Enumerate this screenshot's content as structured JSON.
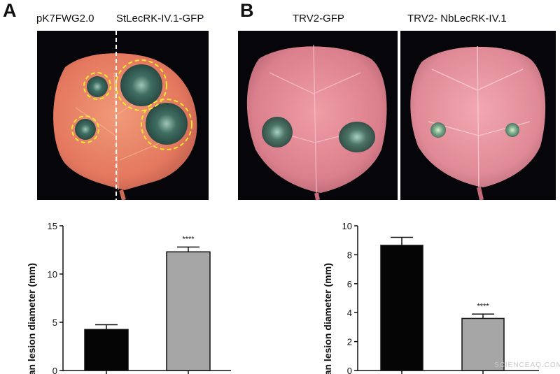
{
  "panel_a": {
    "letter": "A",
    "photo_labels": [
      "pK7FWG2.0",
      "StLecRK-IV.1-GFP"
    ]
  },
  "panel_b": {
    "letter": "B",
    "photo_labels": [
      "TRV2-GFP",
      "TRV2- NbLecRK-IV.1"
    ]
  },
  "watermark": "SCIENCEAQ.COM",
  "colors": {
    "bar_control": "#050505",
    "bar_treatment": "#a6a6a6",
    "leaf_a": "#e4785f",
    "leaf_b": "#db7f8c",
    "lesion": "#3f6e62",
    "circle_highlight": "#f2ea2a"
  },
  "chart_data": [
    {
      "type": "bar",
      "panel": "A",
      "categories": [
        "pK7FWG2.0",
        "StLecRK-IV.1-GFP"
      ],
      "values": [
        4.25,
        12.3
      ],
      "errors": [
        0.5,
        0.5
      ],
      "bar_colors": [
        "#050505",
        "#a6a6a6"
      ],
      "significance": [
        "",
        "****"
      ],
      "ylabel": "Mean lesion diameter (mm)",
      "ylim": [
        0,
        15
      ],
      "yticks": [
        0,
        5,
        10,
        15
      ],
      "grid": false
    },
    {
      "type": "bar",
      "panel": "B",
      "categories": [
        "TRV2-GFP",
        "TRV2- NbLecRK-IV.1"
      ],
      "values": [
        8.65,
        3.6
      ],
      "errors": [
        0.55,
        0.3
      ],
      "bar_colors": [
        "#050505",
        "#a6a6a6"
      ],
      "significance": [
        "",
        "****"
      ],
      "ylabel": "Mean lesion diameter (mm)",
      "ylim": [
        0,
        10
      ],
      "yticks": [
        0,
        2,
        4,
        6,
        8,
        10
      ],
      "grid": false
    }
  ]
}
